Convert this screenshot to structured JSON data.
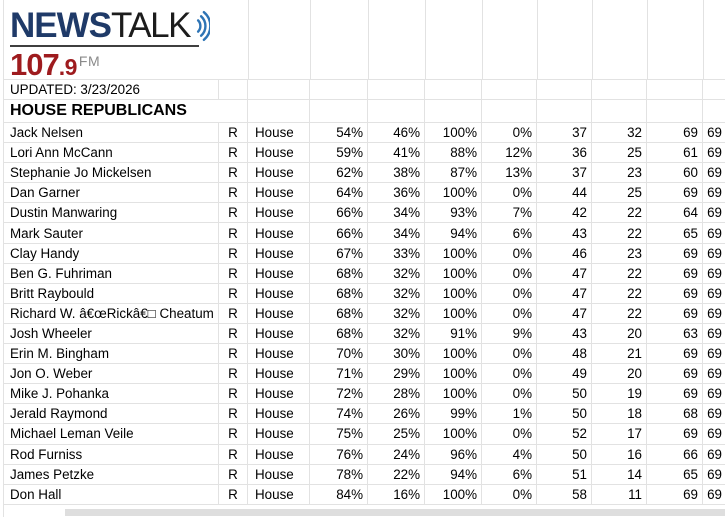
{
  "logo": {
    "news": "NEWS",
    "talk": "TALK",
    "frequency_main": "107",
    "frequency_decimal": ".9",
    "band": "FM",
    "colors": {
      "news_navy": "#1f3a68",
      "talk_black": "#1c1c1c",
      "wave_blue": "#2e74b5",
      "frequency_red": "#9e1b1e",
      "band_gray": "#8a8a8a"
    }
  },
  "updated": {
    "label": "UPDATED: 3/23/2026"
  },
  "section": {
    "title": "HOUSE REPUBLICANS"
  },
  "table": {
    "rows": [
      {
        "name": "Jack Nelsen",
        "party": "R",
        "chamber": "House",
        "percentages": [
          "54%",
          "46%",
          "100%",
          "0%"
        ],
        "counts": [
          "37",
          "32",
          "69",
          "69"
        ]
      },
      {
        "name": "Lori Ann McCann",
        "party": "R",
        "chamber": "House",
        "percentages": [
          "59%",
          "41%",
          "88%",
          "12%"
        ],
        "counts": [
          "36",
          "25",
          "61",
          "69"
        ]
      },
      {
        "name": "Stephanie Jo Mickelsen",
        "party": "R",
        "chamber": "House",
        "percentages": [
          "62%",
          "38%",
          "87%",
          "13%"
        ],
        "counts": [
          "37",
          "23",
          "60",
          "69"
        ]
      },
      {
        "name": "Dan Garner",
        "party": "R",
        "chamber": "House",
        "percentages": [
          "64%",
          "36%",
          "100%",
          "0%"
        ],
        "counts": [
          "44",
          "25",
          "69",
          "69"
        ]
      },
      {
        "name": "Dustin Manwaring",
        "party": "R",
        "chamber": "House",
        "percentages": [
          "66%",
          "34%",
          "93%",
          "7%"
        ],
        "counts": [
          "42",
          "22",
          "64",
          "69"
        ]
      },
      {
        "name": "Mark Sauter",
        "party": "R",
        "chamber": "House",
        "percentages": [
          "66%",
          "34%",
          "94%",
          "6%"
        ],
        "counts": [
          "43",
          "22",
          "65",
          "69"
        ]
      },
      {
        "name": "Clay Handy",
        "party": "R",
        "chamber": "House",
        "percentages": [
          "67%",
          "33%",
          "100%",
          "0%"
        ],
        "counts": [
          "46",
          "23",
          "69",
          "69"
        ]
      },
      {
        "name": "Ben G. Fuhriman",
        "party": "R",
        "chamber": "House",
        "percentages": [
          "68%",
          "32%",
          "100%",
          "0%"
        ],
        "counts": [
          "47",
          "22",
          "69",
          "69"
        ]
      },
      {
        "name": "Britt Raybould",
        "party": "R",
        "chamber": "House",
        "percentages": [
          "68%",
          "32%",
          "100%",
          "0%"
        ],
        "counts": [
          "47",
          "22",
          "69",
          "69"
        ]
      },
      {
        "name": "Richard W. â€œRickâ€□ Cheatum",
        "party": "R",
        "chamber": "House",
        "percentages": [
          "68%",
          "32%",
          "100%",
          "0%"
        ],
        "counts": [
          "47",
          "22",
          "69",
          "69"
        ]
      },
      {
        "name": "Josh Wheeler",
        "party": "R",
        "chamber": "House",
        "percentages": [
          "68%",
          "32%",
          "91%",
          "9%"
        ],
        "counts": [
          "43",
          "20",
          "63",
          "69"
        ]
      },
      {
        "name": "Erin M. Bingham",
        "party": "R",
        "chamber": "House",
        "percentages": [
          "70%",
          "30%",
          "100%",
          "0%"
        ],
        "counts": [
          "48",
          "21",
          "69",
          "69"
        ]
      },
      {
        "name": "Jon O. Weber",
        "party": "R",
        "chamber": "House",
        "percentages": [
          "71%",
          "29%",
          "100%",
          "0%"
        ],
        "counts": [
          "49",
          "20",
          "69",
          "69"
        ]
      },
      {
        "name": "Mike J. Pohanka",
        "party": "R",
        "chamber": "House",
        "percentages": [
          "72%",
          "28%",
          "100%",
          "0%"
        ],
        "counts": [
          "50",
          "19",
          "69",
          "69"
        ]
      },
      {
        "name": "Jerald Raymond",
        "party": "R",
        "chamber": "House",
        "percentages": [
          "74%",
          "26%",
          "99%",
          "1%"
        ],
        "counts": [
          "50",
          "18",
          "68",
          "69"
        ]
      },
      {
        "name": "Michael Leman Veile",
        "party": "R",
        "chamber": "House",
        "percentages": [
          "75%",
          "25%",
          "100%",
          "0%"
        ],
        "counts": [
          "52",
          "17",
          "69",
          "69"
        ]
      },
      {
        "name": "Rod Furniss",
        "party": "R",
        "chamber": "House",
        "percentages": [
          "76%",
          "24%",
          "96%",
          "4%"
        ],
        "counts": [
          "50",
          "16",
          "66",
          "69"
        ]
      },
      {
        "name": "James Petzke",
        "party": "R",
        "chamber": "House",
        "percentages": [
          "78%",
          "22%",
          "94%",
          "6%"
        ],
        "counts": [
          "51",
          "14",
          "65",
          "69"
        ]
      },
      {
        "name": "Don Hall",
        "party": "R",
        "chamber": "House",
        "percentages": [
          "84%",
          "16%",
          "100%",
          "0%"
        ],
        "counts": [
          "58",
          "11",
          "69",
          "69"
        ]
      }
    ]
  }
}
